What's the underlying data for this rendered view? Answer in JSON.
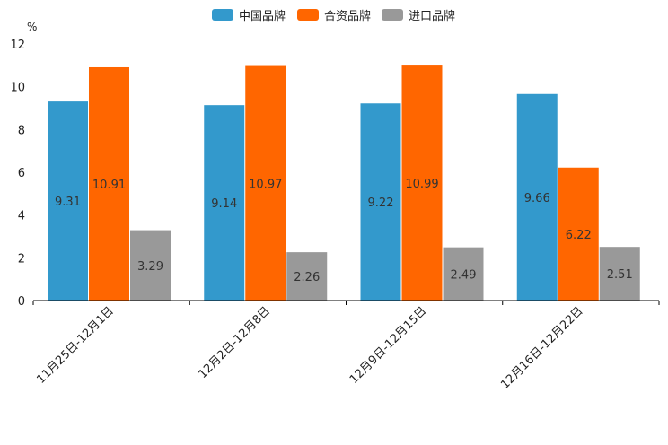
{
  "chart_data": {
    "type": "bar",
    "ylabel": "%",
    "ylim": [
      0,
      12
    ],
    "yticks": [
      0,
      2,
      4,
      6,
      8,
      10,
      12
    ],
    "categories": [
      "11月25日-12月1日",
      "12月2日-12月8日",
      "12月9日-12月15日",
      "12月16日-12月22日"
    ],
    "series": [
      {
        "name": "中国品牌",
        "color": "#3399cc",
        "values": [
          9.31,
          9.14,
          9.22,
          9.66
        ],
        "labels": [
          "9.31",
          "9.14",
          "9.22",
          "9.66"
        ]
      },
      {
        "name": "合资品牌",
        "color": "#ff6600",
        "values": [
          10.91,
          10.97,
          10.99,
          6.22
        ],
        "labels": [
          "10.91",
          "10.97",
          "10.99",
          "6.22"
        ]
      },
      {
        "name": "进口品牌",
        "color": "#999999",
        "values": [
          3.29,
          2.26,
          2.49,
          2.51
        ],
        "labels": [
          "3.29",
          "2.26",
          "2.49",
          "2.51"
        ]
      }
    ],
    "legend_position": "top-center",
    "grid": false
  }
}
